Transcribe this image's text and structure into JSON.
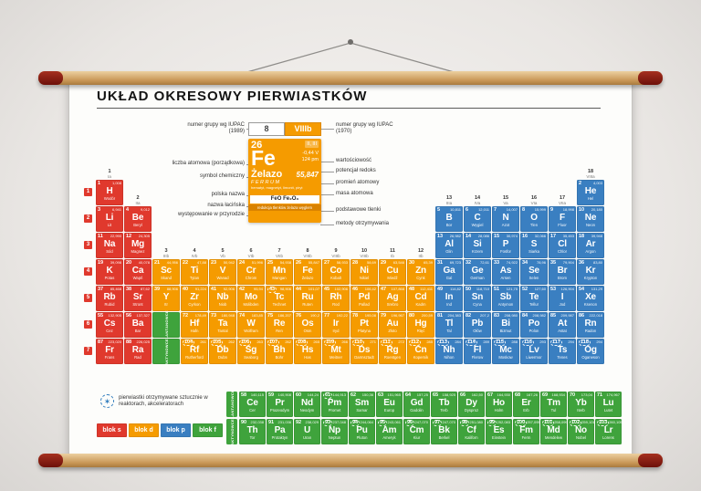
{
  "title": "UKŁAD OKRESOWY PIERWIASTKÓW",
  "colors": {
    "s": "#e0392d",
    "d": "#f59b00",
    "p": "#3a7fc1",
    "f": "#3fa33c"
  },
  "icons": {
    "artificial": "✶"
  },
  "legend": {
    "left_labels": [
      "numer grupy wg IUPAC (1989)",
      "liczba atomowa (porządkowa)",
      "symbol chemiczny",
      "polska nazwa",
      "nazwa łacińska",
      "występowanie w przyrodzie"
    ],
    "right_labels": [
      "numer grupy wg IUPAC (1970)",
      "wartościowość",
      "potencjał redoks",
      "promień atomowy",
      "masa atomowa",
      "podstawowe tlenki",
      "metody otrzymywania"
    ],
    "example": {
      "group1989": "8",
      "group1970": "VIIIb",
      "number": "26",
      "valence": "II, III",
      "symbol": "Fe",
      "redox": "-0,44 V",
      "radius": "124 pm",
      "name": "Żelazo",
      "latin": "FERRUM",
      "mass": "55,847",
      "occurrence": "hematyt, magnetyt, limonit, piryt",
      "oxides": "FeO   Fe₂O₃",
      "methods": "redukcja tlenków żelaza węglem"
    }
  },
  "periods": [
    "1",
    "2",
    "3",
    "4",
    "5",
    "6",
    "7"
  ],
  "groups": [
    {
      "n": "1",
      "r": "Ia",
      "row": 1
    },
    {
      "n": "2",
      "r": "IIa",
      "row": 2
    },
    {
      "n": "3",
      "r": "IIIb",
      "row": 4
    },
    {
      "n": "4",
      "r": "IVb",
      "row": 4
    },
    {
      "n": "5",
      "r": "Vb",
      "row": 4
    },
    {
      "n": "6",
      "r": "VIb",
      "row": 4
    },
    {
      "n": "7",
      "r": "VIIb",
      "row": 4
    },
    {
      "n": "8",
      "r": "VIIIb",
      "row": 4
    },
    {
      "n": "9",
      "r": "VIIIb",
      "row": 4
    },
    {
      "n": "10",
      "r": "VIIIb",
      "row": 4
    },
    {
      "n": "11",
      "r": "Ib",
      "row": 4
    },
    {
      "n": "12",
      "r": "IIb",
      "row": 4
    },
    {
      "n": "13",
      "r": "IIIa",
      "row": 2
    },
    {
      "n": "14",
      "r": "IVa",
      "row": 2
    },
    {
      "n": "15",
      "r": "Va",
      "row": 2
    },
    {
      "n": "16",
      "r": "VIa",
      "row": 2
    },
    {
      "n": "17",
      "r": "VIIa",
      "row": 2
    },
    {
      "n": "18",
      "r": "VIIIa",
      "row": 1
    }
  ],
  "series_markers": [
    {
      "label": "LANTANOWCE",
      "period": 6,
      "group": 3
    },
    {
      "label": "AKTYNOWCE",
      "period": 7,
      "group": 3
    }
  ],
  "elements": [
    [
      1,
      "H",
      "Wodór",
      "1,008",
      "s",
      1,
      1
    ],
    [
      2,
      "He",
      "Hel",
      "4,003",
      "p",
      1,
      18
    ],
    [
      3,
      "Li",
      "Lit",
      "6,941",
      "s",
      2,
      1
    ],
    [
      4,
      "Be",
      "Beryl",
      "9,012",
      "s",
      2,
      2
    ],
    [
      5,
      "B",
      "Bor",
      "10,811",
      "p",
      2,
      13
    ],
    [
      6,
      "C",
      "Węgiel",
      "12,011",
      "p",
      2,
      14
    ],
    [
      7,
      "N",
      "Azot",
      "14,007",
      "p",
      2,
      15
    ],
    [
      8,
      "O",
      "Tlen",
      "15,999",
      "p",
      2,
      16
    ],
    [
      9,
      "F",
      "Fluor",
      "18,998",
      "p",
      2,
      17
    ],
    [
      10,
      "Ne",
      "Neon",
      "20,180",
      "p",
      2,
      18
    ],
    [
      11,
      "Na",
      "Sód",
      "22,990",
      "s",
      3,
      1
    ],
    [
      12,
      "Mg",
      "Magnez",
      "24,305",
      "s",
      3,
      2
    ],
    [
      13,
      "Al",
      "Glin",
      "26,982",
      "p",
      3,
      13
    ],
    [
      14,
      "Si",
      "Krzem",
      "28,086",
      "p",
      3,
      14
    ],
    [
      15,
      "P",
      "Fosfor",
      "30,974",
      "p",
      3,
      15
    ],
    [
      16,
      "S",
      "Siarka",
      "32,066",
      "p",
      3,
      16
    ],
    [
      17,
      "Cl",
      "Chlor",
      "35,453",
      "p",
      3,
      17
    ],
    [
      18,
      "Ar",
      "Argon",
      "39,948",
      "p",
      3,
      18
    ],
    [
      19,
      "K",
      "Potas",
      "39,098",
      "s",
      4,
      1
    ],
    [
      20,
      "Ca",
      "Wapń",
      "40,078",
      "s",
      4,
      2
    ],
    [
      21,
      "Sc",
      "Skand",
      "44,956",
      "d",
      4,
      3
    ],
    [
      22,
      "Ti",
      "Tytan",
      "47,88",
      "d",
      4,
      4
    ],
    [
      23,
      "V",
      "Wanad",
      "50,942",
      "d",
      4,
      5
    ],
    [
      24,
      "Cr",
      "Chrom",
      "51,996",
      "d",
      4,
      6
    ],
    [
      25,
      "Mn",
      "Mangan",
      "54,938",
      "d",
      4,
      7
    ],
    [
      26,
      "Fe",
      "Żelazo",
      "55,847",
      "d",
      4,
      8
    ],
    [
      27,
      "Co",
      "Kobalt",
      "58,933",
      "d",
      4,
      9
    ],
    [
      28,
      "Ni",
      "Nikiel",
      "58,69",
      "d",
      4,
      10
    ],
    [
      29,
      "Cu",
      "Miedź",
      "63,546",
      "d",
      4,
      11
    ],
    [
      30,
      "Zn",
      "Cynk",
      "65,39",
      "d",
      4,
      12
    ],
    [
      31,
      "Ga",
      "Gal",
      "69,723",
      "p",
      4,
      13
    ],
    [
      32,
      "Ge",
      "German",
      "72,61",
      "p",
      4,
      14
    ],
    [
      33,
      "As",
      "Arsen",
      "74,922",
      "p",
      4,
      15
    ],
    [
      34,
      "Se",
      "Selen",
      "78,96",
      "p",
      4,
      16
    ],
    [
      35,
      "Br",
      "Brom",
      "79,904",
      "p",
      4,
      17
    ],
    [
      36,
      "Kr",
      "Krypton",
      "83,80",
      "p",
      4,
      18
    ],
    [
      37,
      "Rb",
      "Rubid",
      "85,468",
      "s",
      5,
      1
    ],
    [
      38,
      "Sr",
      "Stront",
      "87,62",
      "s",
      5,
      2
    ],
    [
      39,
      "Y",
      "Itr",
      "88,906",
      "d",
      5,
      3
    ],
    [
      40,
      "Zr",
      "Cyrkon",
      "91,224",
      "d",
      5,
      4
    ],
    [
      41,
      "Nb",
      "Niob",
      "92,906",
      "d",
      5,
      5
    ],
    [
      42,
      "Mo",
      "Molibden",
      "95,94",
      "d",
      5,
      6
    ],
    [
      43,
      "Tc",
      "Technet",
      "98,906",
      "d",
      5,
      7,
      1
    ],
    [
      44,
      "Ru",
      "Ruten",
      "101,07",
      "d",
      5,
      8
    ],
    [
      45,
      "Rh",
      "Rod",
      "102,906",
      "d",
      5,
      9
    ],
    [
      46,
      "Pd",
      "Pallad",
      "106,42",
      "d",
      5,
      10
    ],
    [
      47,
      "Ag",
      "Srebro",
      "107,868",
      "d",
      5,
      11
    ],
    [
      48,
      "Cd",
      "Kadm",
      "112,411",
      "d",
      5,
      12
    ],
    [
      49,
      "In",
      "Ind",
      "114,82",
      "p",
      5,
      13
    ],
    [
      50,
      "Sn",
      "Cyna",
      "118,710",
      "p",
      5,
      14
    ],
    [
      51,
      "Sb",
      "Antymon",
      "121,75",
      "p",
      5,
      15
    ],
    [
      52,
      "Te",
      "Tellur",
      "127,60",
      "p",
      5,
      16
    ],
    [
      53,
      "I",
      "Jod",
      "126,904",
      "p",
      5,
      17
    ],
    [
      54,
      "Xe",
      "Ksenon",
      "131,29",
      "p",
      5,
      18
    ],
    [
      55,
      "Cs",
      "Cez",
      "132,905",
      "s",
      6,
      1
    ],
    [
      56,
      "Ba",
      "Bar",
      "137,327",
      "s",
      6,
      2
    ],
    [
      72,
      "Hf",
      "Hafn",
      "178,49",
      "d",
      6,
      4
    ],
    [
      73,
      "Ta",
      "Tantal",
      "180,948",
      "d",
      6,
      5
    ],
    [
      74,
      "W",
      "Wolfram",
      "183,85",
      "d",
      6,
      6
    ],
    [
      75,
      "Re",
      "Ren",
      "186,207",
      "d",
      6,
      7
    ],
    [
      76,
      "Os",
      "Osm",
      "190,2",
      "d",
      6,
      8
    ],
    [
      77,
      "Ir",
      "Iryd",
      "192,22",
      "d",
      6,
      9
    ],
    [
      78,
      "Pt",
      "Platyna",
      "195,08",
      "d",
      6,
      10
    ],
    [
      79,
      "Au",
      "Złoto",
      "196,967",
      "d",
      6,
      11
    ],
    [
      80,
      "Hg",
      "Rtęć",
      "200,59",
      "d",
      6,
      12
    ],
    [
      81,
      "Tl",
      "Tal",
      "204,383",
      "p",
      6,
      13
    ],
    [
      82,
      "Pb",
      "Ołów",
      "207,2",
      "p",
      6,
      14
    ],
    [
      83,
      "Bi",
      "Bizmut",
      "208,980",
      "p",
      6,
      15
    ],
    [
      84,
      "Po",
      "Polon",
      "208,982",
      "p",
      6,
      16
    ],
    [
      85,
      "At",
      "Astat",
      "209,987",
      "p",
      6,
      17
    ],
    [
      86,
      "Rn",
      "Radon",
      "222,018",
      "p",
      6,
      18
    ],
    [
      87,
      "Fr",
      "Frans",
      "223,020",
      "s",
      7,
      1
    ],
    [
      88,
      "Ra",
      "Rad",
      "226,025",
      "s",
      7,
      2
    ],
    [
      104,
      "Rf",
      "Rutherford",
      "261",
      "d",
      7,
      4,
      1
    ],
    [
      105,
      "Db",
      "Dubn",
      "262",
      "d",
      7,
      5,
      1
    ],
    [
      106,
      "Sg",
      "Seaborg",
      "263",
      "d",
      7,
      6,
      1
    ],
    [
      107,
      "Bh",
      "Bohr",
      "262",
      "d",
      7,
      7,
      1
    ],
    [
      108,
      "Hs",
      "Has",
      "265",
      "d",
      7,
      8,
      1
    ],
    [
      109,
      "Mt",
      "Meitner",
      "266",
      "d",
      7,
      9,
      1
    ],
    [
      110,
      "Ds",
      "Darmsztadt",
      "271",
      "d",
      7,
      10,
      1
    ],
    [
      111,
      "Rg",
      "Roentgen",
      "272",
      "d",
      7,
      11,
      1
    ],
    [
      112,
      "Cn",
      "Kopernik",
      "285",
      "d",
      7,
      12,
      1
    ],
    [
      113,
      "Nh",
      "Nihon",
      "284",
      "p",
      7,
      13,
      1
    ],
    [
      114,
      "Fl",
      "Flerow",
      "289",
      "p",
      7,
      14,
      1
    ],
    [
      115,
      "Mc",
      "Moskow",
      "288",
      "p",
      7,
      15,
      1
    ],
    [
      116,
      "Lv",
      "Liwermor",
      "293",
      "p",
      7,
      16,
      1
    ],
    [
      117,
      "Ts",
      "Tenes",
      "294",
      "p",
      7,
      17,
      1
    ],
    [
      118,
      "Og",
      "Oganeson",
      "294",
      "p",
      7,
      18,
      1
    ]
  ],
  "fblock": {
    "rows": [
      {
        "label": "LANTANOWCE",
        "cells": [
          [
            58,
            "Ce",
            "Cer",
            "140,115"
          ],
          [
            59,
            "Pr",
            "Prazeodym",
            "140,908"
          ],
          [
            60,
            "Nd",
            "Neodym",
            "144,24"
          ],
          [
            61,
            "Pm",
            "Promet",
            "144,913",
            1
          ],
          [
            62,
            "Sm",
            "Samar",
            "150,36"
          ],
          [
            63,
            "Eu",
            "Europ",
            "151,965"
          ],
          [
            64,
            "Gd",
            "Gadolin",
            "157,25"
          ],
          [
            65,
            "Tb",
            "Terb",
            "158,925"
          ],
          [
            66,
            "Dy",
            "Dysproz",
            "162,50"
          ],
          [
            67,
            "Ho",
            "Holm",
            "164,930"
          ],
          [
            68,
            "Er",
            "Erb",
            "167,26"
          ],
          [
            69,
            "Tm",
            "Tul",
            "168,934"
          ],
          [
            70,
            "Yb",
            "Iterb",
            "173,04"
          ],
          [
            71,
            "Lu",
            "Lutet",
            "174,967"
          ]
        ]
      },
      {
        "label": "AKTYNOWCE",
        "cells": [
          [
            90,
            "Th",
            "Tor",
            "232,038"
          ],
          [
            91,
            "Pa",
            "Protaktyn",
            "231,036"
          ],
          [
            92,
            "U",
            "Uran",
            "238,029"
          ],
          [
            93,
            "Np",
            "Neptun",
            "237,048",
            1
          ],
          [
            94,
            "Pu",
            "Pluton",
            "244,064",
            1
          ],
          [
            95,
            "Am",
            "Ameryk",
            "243,061",
            1
          ],
          [
            96,
            "Cm",
            "Kiur",
            "247,070",
            1
          ],
          [
            97,
            "Bk",
            "Berkel",
            "247,070",
            1
          ],
          [
            98,
            "Cf",
            "Kaliforn",
            "251,080",
            1
          ],
          [
            99,
            "Es",
            "Einstein",
            "252,083",
            1
          ],
          [
            100,
            "Fm",
            "Ferm",
            "257,095",
            1
          ],
          [
            101,
            "Md",
            "Mendelew",
            "258,099",
            1
          ],
          [
            102,
            "No",
            "Nobel",
            "259,101",
            1
          ],
          [
            103,
            "Lr",
            "Lorens",
            "260,105",
            1
          ]
        ]
      }
    ]
  },
  "footer": {
    "artificial_note": "pierwiastki otrzymywane sztucznie w reaktorach, akceleratorach",
    "blocks": [
      {
        "label": "blok s",
        "block": "s"
      },
      {
        "label": "blok d",
        "block": "d"
      },
      {
        "label": "blok p",
        "block": "p"
      },
      {
        "label": "blok f",
        "block": "f"
      }
    ]
  }
}
